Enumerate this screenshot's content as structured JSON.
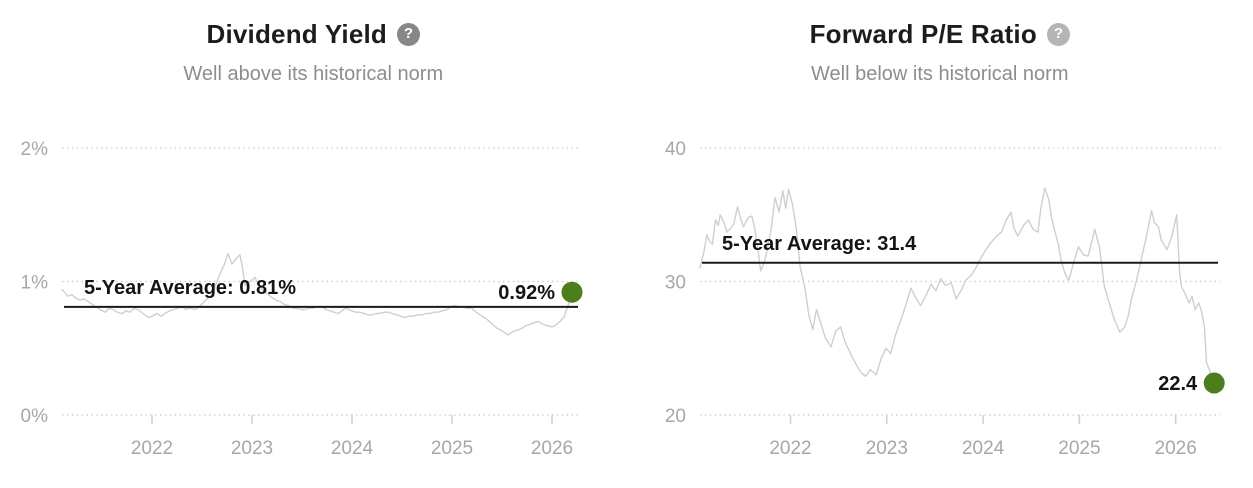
{
  "colors": {
    "accent_green_dot": "#4d7e1e",
    "average_line": "#1a1a1a",
    "series_line": "#cfcfcf",
    "axis_text": "#a7a7a7",
    "title_text": "#1c1c1c",
    "subtitle_text": "#8d8d8d"
  },
  "chart_data": [
    {
      "type": "line",
      "title": "Dividend Yield",
      "subtitle": "Well above its historical norm",
      "help_icon_glyph": "?",
      "help_icon_color": "#878787",
      "grid": "dotted-horizontal",
      "legend": "none",
      "xlim": [
        2021.1,
        2026.28
      ],
      "ylim": [
        0,
        2.0
      ],
      "x_ticks": [
        2022,
        2023,
        2024,
        2025,
        2026
      ],
      "x_tick_labels": [
        "2022",
        "2023",
        "2024",
        "2025",
        "2026"
      ],
      "y_ticks": [
        0,
        1,
        2
      ],
      "y_tick_labels": [
        "0%",
        "1%",
        "2%"
      ],
      "average_label": "5-Year Average: 0.81%",
      "average_value": 0.81,
      "current_label": "0.92%",
      "current_value": 0.92,
      "series_name": "Dividend Yield %",
      "series": [
        [
          2021.1,
          0.94
        ],
        [
          2021.16,
          0.89
        ],
        [
          2021.2,
          0.9
        ],
        [
          2021.23,
          0.88
        ],
        [
          2021.28,
          0.86
        ],
        [
          2021.32,
          0.87
        ],
        [
          2021.36,
          0.85
        ],
        [
          2021.4,
          0.83
        ],
        [
          2021.44,
          0.81
        ],
        [
          2021.48,
          0.79
        ],
        [
          2021.53,
          0.77
        ],
        [
          2021.57,
          0.8
        ],
        [
          2021.61,
          0.79
        ],
        [
          2021.65,
          0.77
        ],
        [
          2021.7,
          0.76
        ],
        [
          2021.74,
          0.78
        ],
        [
          2021.78,
          0.77
        ],
        [
          2021.82,
          0.8
        ],
        [
          2021.86,
          0.79
        ],
        [
          2021.91,
          0.76
        ],
        [
          2021.96,
          0.73
        ],
        [
          2022.0,
          0.74
        ],
        [
          2022.05,
          0.76
        ],
        [
          2022.09,
          0.74
        ],
        [
          2022.13,
          0.76
        ],
        [
          2022.17,
          0.78
        ],
        [
          2022.22,
          0.79
        ],
        [
          2022.26,
          0.8
        ],
        [
          2022.3,
          0.81
        ],
        [
          2022.34,
          0.79
        ],
        [
          2022.37,
          0.8
        ],
        [
          2022.43,
          0.79
        ],
        [
          2022.47,
          0.81
        ],
        [
          2022.51,
          0.84
        ],
        [
          2022.55,
          0.87
        ],
        [
          2022.6,
          0.9
        ],
        [
          2022.63,
          0.96
        ],
        [
          2022.66,
          1.02
        ],
        [
          2022.7,
          1.09
        ],
        [
          2022.73,
          1.14
        ],
        [
          2022.76,
          1.21
        ],
        [
          2022.8,
          1.13
        ],
        [
          2022.84,
          1.17
        ],
        [
          2022.88,
          1.2
        ],
        [
          2022.91,
          1.08
        ],
        [
          2022.93,
          0.97
        ],
        [
          2022.98,
          1.0
        ],
        [
          2023.03,
          1.03
        ],
        [
          2023.06,
          0.98
        ],
        [
          2023.1,
          0.94
        ],
        [
          2023.15,
          0.91
        ],
        [
          2023.2,
          0.88
        ],
        [
          2023.24,
          0.86
        ],
        [
          2023.28,
          0.85
        ],
        [
          2023.32,
          0.83
        ],
        [
          2023.36,
          0.82
        ],
        [
          2023.41,
          0.8
        ],
        [
          2023.45,
          0.8
        ],
        [
          2023.49,
          0.79
        ],
        [
          2023.53,
          0.79
        ],
        [
          2023.57,
          0.8
        ],
        [
          2023.61,
          0.8
        ],
        [
          2023.65,
          0.81
        ],
        [
          2023.7,
          0.81
        ],
        [
          2023.74,
          0.79
        ],
        [
          2023.78,
          0.78
        ],
        [
          2023.82,
          0.77
        ],
        [
          2023.86,
          0.76
        ],
        [
          2023.9,
          0.78
        ],
        [
          2023.93,
          0.8
        ],
        [
          2023.97,
          0.79
        ],
        [
          2024.0,
          0.78
        ],
        [
          2024.04,
          0.77
        ],
        [
          2024.08,
          0.77
        ],
        [
          2024.12,
          0.76
        ],
        [
          2024.16,
          0.75
        ],
        [
          2024.2,
          0.75
        ],
        [
          2024.24,
          0.76
        ],
        [
          2024.28,
          0.76
        ],
        [
          2024.32,
          0.77
        ],
        [
          2024.36,
          0.77
        ],
        [
          2024.4,
          0.76
        ],
        [
          2024.45,
          0.75
        ],
        [
          2024.49,
          0.74
        ],
        [
          2024.53,
          0.73
        ],
        [
          2024.57,
          0.74
        ],
        [
          2024.61,
          0.74
        ],
        [
          2024.65,
          0.75
        ],
        [
          2024.7,
          0.75
        ],
        [
          2024.74,
          0.76
        ],
        [
          2024.78,
          0.76
        ],
        [
          2024.82,
          0.77
        ],
        [
          2024.86,
          0.77
        ],
        [
          2024.9,
          0.78
        ],
        [
          2024.95,
          0.79
        ],
        [
          2024.99,
          0.81
        ],
        [
          2025.03,
          0.82
        ],
        [
          2025.07,
          0.81
        ],
        [
          2025.11,
          0.81
        ],
        [
          2025.15,
          0.8
        ],
        [
          2025.2,
          0.8
        ],
        [
          2025.24,
          0.77
        ],
        [
          2025.28,
          0.75
        ],
        [
          2025.32,
          0.73
        ],
        [
          2025.36,
          0.71
        ],
        [
          2025.39,
          0.69
        ],
        [
          2025.42,
          0.67
        ],
        [
          2025.45,
          0.65
        ],
        [
          2025.48,
          0.64
        ],
        [
          2025.52,
          0.62
        ],
        [
          2025.56,
          0.6
        ],
        [
          2025.6,
          0.62
        ],
        [
          2025.63,
          0.63
        ],
        [
          2025.67,
          0.64
        ],
        [
          2025.7,
          0.65
        ],
        [
          2025.74,
          0.67
        ],
        [
          2025.78,
          0.68
        ],
        [
          2025.82,
          0.69
        ],
        [
          2025.86,
          0.7
        ],
        [
          2025.89,
          0.69
        ],
        [
          2025.91,
          0.68
        ],
        [
          2025.94,
          0.67
        ],
        [
          2025.96,
          0.67
        ],
        [
          2026.0,
          0.66
        ],
        [
          2026.03,
          0.67
        ],
        [
          2026.06,
          0.69
        ],
        [
          2026.08,
          0.7
        ],
        [
          2026.1,
          0.72
        ],
        [
          2026.12,
          0.73
        ],
        [
          2026.15,
          0.8
        ],
        [
          2026.18,
          0.86
        ],
        [
          2026.2,
          0.92
        ]
      ]
    },
    {
      "type": "line",
      "title": "Forward P/E Ratio",
      "subtitle": "Well below its historical norm",
      "help_icon_glyph": "?",
      "help_icon_color": "#b5b5b5",
      "grid": "dotted-horizontal",
      "legend": "none",
      "xlim": [
        2021.06,
        2026.46
      ],
      "ylim": [
        20,
        40
      ],
      "x_ticks": [
        2022,
        2023,
        2024,
        2025,
        2026
      ],
      "x_tick_labels": [
        "2022",
        "2023",
        "2024",
        "2025",
        "2026"
      ],
      "y_ticks": [
        20,
        30,
        40
      ],
      "y_tick_labels": [
        "20",
        "30",
        "40"
      ],
      "average_label": "5-Year Average: 31.4",
      "average_value": 31.4,
      "current_label": "22.4",
      "current_value": 22.4,
      "series_name": "Forward P/E",
      "series": [
        [
          2021.06,
          31.0
        ],
        [
          2021.1,
          32.2
        ],
        [
          2021.13,
          33.5
        ],
        [
          2021.16,
          33.0
        ],
        [
          2021.19,
          32.8
        ],
        [
          2021.22,
          34.6
        ],
        [
          2021.25,
          34.2
        ],
        [
          2021.27,
          35.0
        ],
        [
          2021.31,
          34.4
        ],
        [
          2021.34,
          33.7
        ],
        [
          2021.38,
          34.0
        ],
        [
          2021.41,
          34.3
        ],
        [
          2021.45,
          35.6
        ],
        [
          2021.48,
          34.8
        ],
        [
          2021.51,
          34.1
        ],
        [
          2021.54,
          34.5
        ],
        [
          2021.56,
          34.8
        ],
        [
          2021.6,
          34.9
        ],
        [
          2021.63,
          33.9
        ],
        [
          2021.65,
          33.0
        ],
        [
          2021.69,
          30.8
        ],
        [
          2021.73,
          31.5
        ],
        [
          2021.76,
          32.4
        ],
        [
          2021.8,
          34.0
        ],
        [
          2021.84,
          36.3
        ],
        [
          2021.88,
          35.2
        ],
        [
          2021.92,
          36.8
        ],
        [
          2021.95,
          35.5
        ],
        [
          2021.98,
          36.9
        ],
        [
          2022.02,
          35.8
        ],
        [
          2022.06,
          34.0
        ],
        [
          2022.1,
          31.1
        ],
        [
          2022.15,
          29.5
        ],
        [
          2022.19,
          27.5
        ],
        [
          2022.23,
          26.4
        ],
        [
          2022.27,
          27.9
        ],
        [
          2022.31,
          27.0
        ],
        [
          2022.36,
          25.8
        ],
        [
          2022.42,
          25.1
        ],
        [
          2022.47,
          26.3
        ],
        [
          2022.52,
          26.6
        ],
        [
          2022.57,
          25.4
        ],
        [
          2022.63,
          24.5
        ],
        [
          2022.68,
          23.8
        ],
        [
          2022.73,
          23.2
        ],
        [
          2022.78,
          22.9
        ],
        [
          2022.83,
          23.4
        ],
        [
          2022.89,
          23.0
        ],
        [
          2022.94,
          24.2
        ],
        [
          2022.99,
          25.0
        ],
        [
          2023.04,
          24.6
        ],
        [
          2023.09,
          26.0
        ],
        [
          2023.15,
          27.2
        ],
        [
          2023.2,
          28.3
        ],
        [
          2023.25,
          29.5
        ],
        [
          2023.3,
          28.8
        ],
        [
          2023.35,
          28.2
        ],
        [
          2023.41,
          29.0
        ],
        [
          2023.46,
          29.8
        ],
        [
          2023.51,
          29.3
        ],
        [
          2023.56,
          30.2
        ],
        [
          2023.61,
          29.7
        ],
        [
          2023.67,
          29.9
        ],
        [
          2023.72,
          28.7
        ],
        [
          2023.77,
          29.3
        ],
        [
          2023.82,
          30.1
        ],
        [
          2023.88,
          30.5
        ],
        [
          2023.93,
          31.1
        ],
        [
          2023.98,
          31.8
        ],
        [
          2024.03,
          32.4
        ],
        [
          2024.08,
          32.9
        ],
        [
          2024.14,
          33.4
        ],
        [
          2024.19,
          33.7
        ],
        [
          2024.24,
          34.6
        ],
        [
          2024.29,
          35.2
        ],
        [
          2024.32,
          34.0
        ],
        [
          2024.36,
          33.4
        ],
        [
          2024.42,
          34.2
        ],
        [
          2024.47,
          34.6
        ],
        [
          2024.52,
          33.9
        ],
        [
          2024.57,
          33.7
        ],
        [
          2024.6,
          35.5
        ],
        [
          2024.64,
          37.0
        ],
        [
          2024.68,
          36.2
        ],
        [
          2024.71,
          34.8
        ],
        [
          2024.74,
          33.9
        ],
        [
          2024.78,
          32.8
        ],
        [
          2024.81,
          31.6
        ],
        [
          2024.85,
          30.6
        ],
        [
          2024.89,
          30.1
        ],
        [
          2024.94,
          31.4
        ],
        [
          2024.99,
          32.6
        ],
        [
          2025.04,
          32.0
        ],
        [
          2025.09,
          31.9
        ],
        [
          2025.16,
          33.9
        ],
        [
          2025.21,
          32.5
        ],
        [
          2025.26,
          29.6
        ],
        [
          2025.31,
          28.4
        ],
        [
          2025.36,
          27.2
        ],
        [
          2025.42,
          26.2
        ],
        [
          2025.47,
          26.6
        ],
        [
          2025.51,
          27.5
        ],
        [
          2025.54,
          28.7
        ],
        [
          2025.59,
          30.0
        ],
        [
          2025.65,
          31.9
        ],
        [
          2025.7,
          33.5
        ],
        [
          2025.75,
          35.3
        ],
        [
          2025.78,
          34.4
        ],
        [
          2025.82,
          34.1
        ],
        [
          2025.85,
          33.1
        ],
        [
          2025.91,
          32.4
        ],
        [
          2025.96,
          33.4
        ],
        [
          2026.01,
          35.0
        ],
        [
          2026.04,
          30.7
        ],
        [
          2026.06,
          29.6
        ],
        [
          2026.09,
          29.2
        ],
        [
          2026.14,
          28.4
        ],
        [
          2026.17,
          28.9
        ],
        [
          2026.2,
          27.9
        ],
        [
          2026.24,
          28.4
        ],
        [
          2026.27,
          27.7
        ],
        [
          2026.3,
          26.5
        ],
        [
          2026.32,
          23.9
        ],
        [
          2026.35,
          23.4
        ],
        [
          2026.4,
          22.4
        ]
      ]
    }
  ]
}
